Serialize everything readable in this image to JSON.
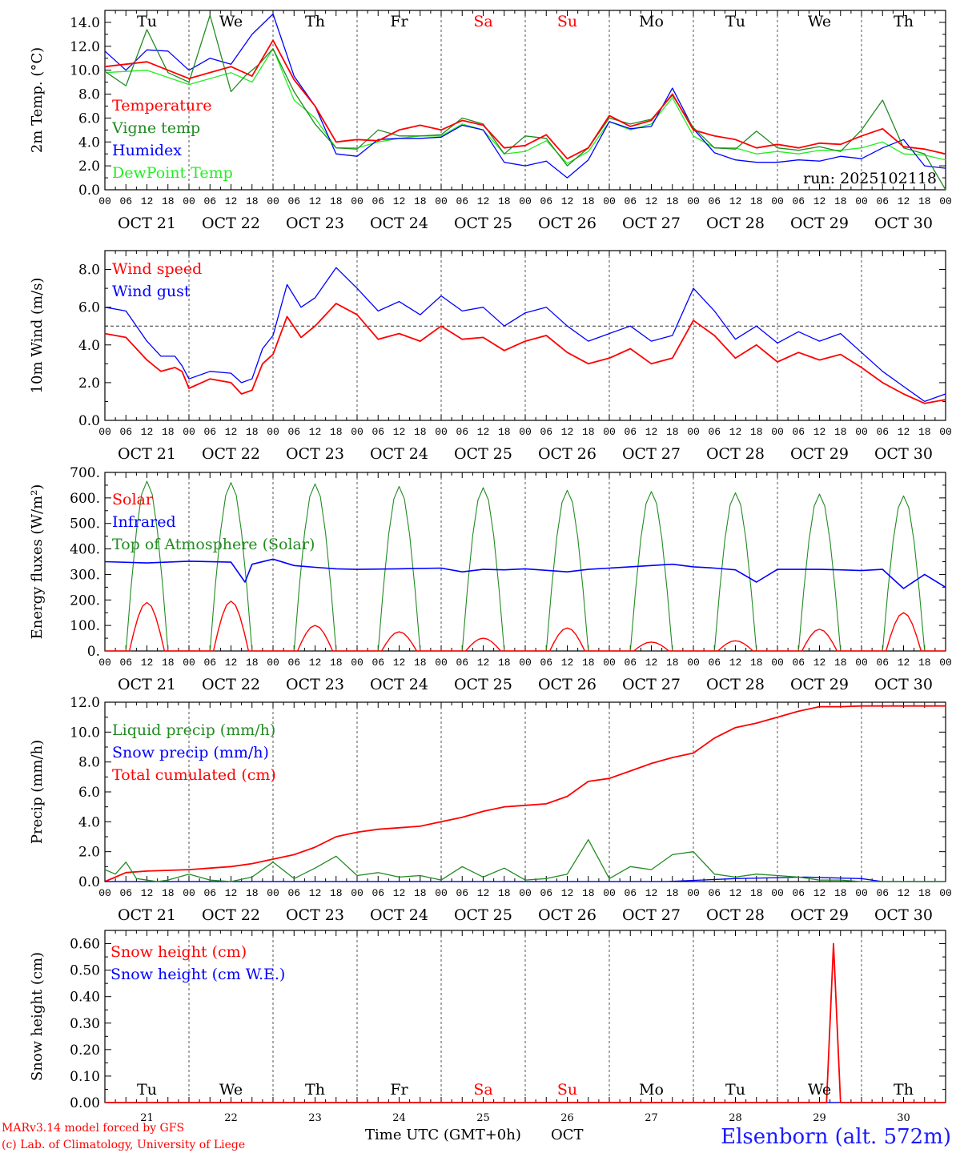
{
  "colors": {
    "red": "#ff0000",
    "green": "#228b22",
    "blue": "#0000ff",
    "lime": "#22ee22",
    "axis": "#000000"
  },
  "x_axis": {
    "hour_ticks": [
      "00",
      "06",
      "12",
      "18"
    ],
    "final_tick": "00",
    "date_labels": [
      "OCT 21",
      "OCT 22",
      "OCT 23",
      "OCT 24",
      "OCT 25",
      "OCT 26",
      "OCT 27",
      "OCT 28",
      "OCT 29",
      "OCT 30"
    ],
    "days": [
      {
        "abbr": "Tu",
        "weekend": false
      },
      {
        "abbr": "We",
        "weekend": false
      },
      {
        "abbr": "Th",
        "weekend": false
      },
      {
        "abbr": "Fr",
        "weekend": false
      },
      {
        "abbr": "Sa",
        "weekend": true
      },
      {
        "abbr": "Su",
        "weekend": true
      },
      {
        "abbr": "Mo",
        "weekend": false
      },
      {
        "abbr": "Tu",
        "weekend": false
      },
      {
        "abbr": "We",
        "weekend": false
      },
      {
        "abbr": "Th",
        "weekend": false
      }
    ],
    "day_numbers": [
      "21",
      "22",
      "23",
      "24",
      "25",
      "26",
      "27",
      "28",
      "29",
      "30"
    ],
    "bottom_title": "Time UTC (GMT+0h)",
    "bottom_month": "OCT"
  },
  "footer": {
    "model_line": "MARv3.14 model forced by GFS",
    "credit_line": "(c) Lab. of Climatology, University of Liege",
    "station": "Elsenborn (alt. 572m)"
  },
  "chart_data": [
    {
      "type": "line",
      "id": "temperature",
      "ylabel": "2m Temp. (°C)",
      "ylim": [
        0,
        15
      ],
      "yticks": [
        "0.0",
        "2.0",
        "4.0",
        "6.0",
        "8.0",
        "10.0",
        "12.0",
        "14.0"
      ],
      "run_label": "run: 2025102118",
      "x_unit": "hours since Oct 21 00 UTC",
      "series": [
        {
          "name": "Temperature",
          "color": "red",
          "x": [
            0,
            12,
            24,
            36,
            42,
            48,
            54,
            60,
            66,
            72,
            78,
            84,
            90,
            96,
            102,
            108,
            114,
            120,
            126,
            132,
            138,
            144,
            150,
            156,
            162,
            168,
            174,
            180,
            186,
            192,
            198,
            204,
            210,
            216,
            222,
            228,
            234,
            240
          ],
          "values": [
            10.3,
            10.7,
            9.3,
            10.3,
            9.5,
            12.5,
            9.2,
            7.0,
            4.0,
            4.2,
            4.1,
            5.0,
            5.4,
            5.0,
            5.8,
            5.4,
            3.5,
            3.7,
            4.6,
            2.6,
            3.5,
            6.2,
            5.3,
            5.8,
            8.0,
            5.0,
            4.5,
            4.2,
            3.5,
            3.8,
            3.5,
            3.9,
            3.8,
            4.5,
            5.1,
            3.6,
            3.4,
            3.0
          ]
        },
        {
          "name": "Vigne temp",
          "color": "green",
          "x": [
            0,
            6,
            12,
            18,
            24,
            30,
            36,
            40,
            44,
            48,
            54,
            60,
            66,
            72,
            78,
            84,
            90,
            96,
            102,
            108,
            114,
            120,
            126,
            132,
            138,
            144,
            150,
            156,
            162,
            168,
            174,
            180,
            186,
            192,
            198,
            204,
            210,
            216,
            222,
            228,
            234,
            240
          ],
          "values": [
            9.9,
            8.7,
            13.4,
            9.8,
            9.0,
            14.6,
            8.2,
            9.5,
            10.5,
            11.8,
            8.2,
            5.5,
            3.5,
            3.4,
            5.0,
            4.5,
            4.5,
            4.6,
            6.0,
            5.5,
            3.0,
            4.5,
            4.3,
            2.0,
            3.5,
            6.0,
            5.5,
            5.9,
            7.9,
            5.2,
            3.5,
            3.4,
            4.9,
            3.5,
            3.3,
            3.6,
            3.2,
            5.0,
            7.5,
            3.5,
            3.0,
            0.0
          ]
        },
        {
          "name": "Humidex",
          "color": "blue",
          "x": [
            0,
            6,
            12,
            18,
            24,
            30,
            36,
            42,
            48,
            54,
            60,
            66,
            72,
            78,
            84,
            90,
            96,
            102,
            108,
            114,
            120,
            126,
            132,
            138,
            144,
            150,
            156,
            162,
            168,
            174,
            180,
            186,
            192,
            198,
            204,
            210,
            216,
            222,
            228,
            234,
            240
          ],
          "values": [
            11.6,
            10.0,
            11.7,
            11.6,
            10.0,
            11.0,
            10.5,
            13.0,
            14.7,
            9.5,
            7.0,
            3.0,
            2.8,
            4.2,
            4.3,
            4.3,
            4.4,
            5.4,
            5.0,
            2.3,
            2.0,
            2.4,
            1.0,
            2.5,
            5.7,
            5.1,
            5.3,
            8.5,
            5.1,
            3.1,
            2.5,
            2.3,
            2.3,
            2.5,
            2.4,
            2.8,
            2.6,
            3.5,
            4.2,
            2.0,
            1.8
          ]
        },
        {
          "name": "DewPoint Temp",
          "color": "lime",
          "x": [
            0,
            12,
            24,
            36,
            42,
            48,
            54,
            60,
            66,
            72,
            78,
            84,
            90,
            96,
            102,
            108,
            114,
            120,
            126,
            132,
            138,
            144,
            150,
            156,
            162,
            168,
            174,
            180,
            186,
            192,
            198,
            204,
            210,
            216,
            222,
            228,
            234,
            240
          ],
          "values": [
            9.8,
            10.0,
            8.8,
            9.8,
            9.0,
            11.8,
            7.5,
            6.0,
            3.5,
            3.5,
            4.0,
            4.3,
            4.5,
            4.5,
            5.5,
            5.0,
            3.0,
            3.2,
            4.1,
            2.2,
            3.2,
            5.7,
            5.0,
            5.5,
            7.7,
            4.5,
            3.5,
            3.5,
            3.0,
            3.2,
            3.0,
            3.3,
            3.3,
            3.5,
            4.0,
            3.0,
            2.9,
            2.5
          ]
        }
      ]
    },
    {
      "type": "line",
      "id": "wind",
      "ylabel": "10m Wind (m/s)",
      "ylim": [
        0,
        9
      ],
      "yticks": [
        "0.0",
        "2.0",
        "4.0",
        "6.0",
        "8.0"
      ],
      "reference_line": 5.0,
      "series": [
        {
          "name": "Wind speed",
          "color": "red",
          "x": [
            0,
            6,
            12,
            16,
            20,
            22,
            24,
            30,
            36,
            39,
            42,
            45,
            48,
            52,
            56,
            60,
            66,
            72,
            78,
            84,
            90,
            96,
            102,
            108,
            114,
            120,
            126,
            132,
            138,
            144,
            150,
            156,
            162,
            168,
            174,
            180,
            186,
            192,
            198,
            204,
            210,
            216,
            222,
            228,
            234,
            240
          ],
          "values": [
            4.6,
            4.4,
            3.2,
            2.6,
            2.8,
            2.6,
            1.7,
            2.2,
            2.0,
            1.4,
            1.6,
            3.0,
            3.5,
            5.5,
            4.4,
            5.0,
            6.2,
            5.6,
            4.3,
            4.6,
            4.2,
            5.0,
            4.3,
            4.4,
            3.7,
            4.2,
            4.5,
            3.6,
            3.0,
            3.3,
            3.8,
            3.0,
            3.3,
            5.3,
            4.5,
            3.3,
            4.0,
            3.1,
            3.6,
            3.2,
            3.5,
            2.8,
            2.0,
            1.4,
            0.9,
            1.1
          ]
        },
        {
          "name": "Wind gust",
          "color": "blue",
          "x": [
            0,
            6,
            12,
            16,
            20,
            22,
            24,
            30,
            36,
            39,
            42,
            45,
            48,
            52,
            56,
            60,
            66,
            72,
            78,
            84,
            90,
            96,
            102,
            108,
            114,
            120,
            126,
            132,
            138,
            144,
            150,
            156,
            162,
            168,
            174,
            180,
            186,
            192,
            198,
            204,
            210,
            216,
            222,
            228,
            234,
            240
          ],
          "values": [
            6.0,
            5.8,
            4.2,
            3.4,
            3.4,
            2.9,
            2.2,
            2.6,
            2.5,
            2.0,
            2.2,
            3.8,
            4.5,
            7.2,
            6.0,
            6.5,
            8.1,
            7.0,
            5.8,
            6.3,
            5.6,
            6.6,
            5.8,
            6.0,
            5.0,
            5.7,
            6.0,
            5.0,
            4.2,
            4.6,
            5.0,
            4.2,
            4.5,
            7.0,
            5.8,
            4.3,
            5.0,
            4.1,
            4.7,
            4.2,
            4.6,
            3.6,
            2.6,
            1.8,
            1.0,
            1.4
          ]
        }
      ]
    },
    {
      "type": "line",
      "id": "fluxes",
      "ylabel": "Energy fluxes (W/m²)",
      "ylim": [
        0,
        700
      ],
      "yticks": [
        "0.",
        "100.",
        "200.",
        "300.",
        "400.",
        "500.",
        "600.",
        "700."
      ],
      "toa_peaks": [
        665,
        660,
        655,
        645,
        640,
        630,
        625,
        620,
        615,
        608
      ],
      "solar_peaks": [
        190,
        195,
        100,
        75,
        50,
        90,
        35,
        40,
        85,
        150
      ],
      "series": [
        {
          "name": "Solar",
          "color": "red",
          "note": "daytime pulse 07-17 UTC, peaks in solar_peaks"
        },
        {
          "name": "Infrared",
          "color": "blue",
          "x": [
            0,
            12,
            24,
            36,
            40,
            42,
            48,
            54,
            60,
            66,
            72,
            84,
            96,
            102,
            108,
            114,
            120,
            132,
            138,
            144,
            156,
            162,
            168,
            174,
            180,
            186,
            192,
            204,
            210,
            216,
            222,
            228,
            234,
            240
          ],
          "values": [
            350,
            345,
            352,
            348,
            270,
            340,
            360,
            335,
            328,
            322,
            320,
            322,
            325,
            310,
            320,
            318,
            322,
            310,
            320,
            325,
            335,
            340,
            330,
            325,
            318,
            270,
            320,
            320,
            318,
            315,
            320,
            245,
            300,
            250
          ]
        },
        {
          "name": "Top of Atmosphere (Solar)",
          "color": "green",
          "note": "daytime pulse 06-18 UTC, peaks in toa_peaks"
        }
      ]
    },
    {
      "type": "line",
      "id": "precip",
      "ylabel": "Precip (mm/h)",
      "ylim": [
        0,
        12
      ],
      "yticks": [
        "0.0",
        "2.0",
        "4.0",
        "6.0",
        "8.0",
        "10.0",
        "12.0"
      ],
      "series": [
        {
          "name": "Liquid precip (mm/h)",
          "color": "green",
          "x": [
            0,
            3,
            6,
            9,
            12,
            15,
            18,
            24,
            30,
            36,
            42,
            48,
            54,
            60,
            66,
            72,
            78,
            84,
            90,
            96,
            102,
            108,
            114,
            120,
            126,
            132,
            138,
            144,
            150,
            156,
            162,
            168,
            174,
            180,
            186,
            192,
            198,
            204,
            210,
            216,
            222,
            228,
            234,
            240
          ],
          "values": [
            0.8,
            0.5,
            1.3,
            0.2,
            0.1,
            0.0,
            0.1,
            0.5,
            0.1,
            0.0,
            0.3,
            1.3,
            0.2,
            0.9,
            1.7,
            0.4,
            0.6,
            0.3,
            0.4,
            0.1,
            1.0,
            0.3,
            0.9,
            0.1,
            0.2,
            0.5,
            2.8,
            0.2,
            1.0,
            0.8,
            1.8,
            2.0,
            0.5,
            0.3,
            0.5,
            0.4,
            0.3,
            0.1,
            0.1,
            0.0,
            0.0,
            0.0,
            0.0,
            0.0
          ]
        },
        {
          "name": "Snow precip (mm/h)",
          "color": "blue",
          "x": [
            0,
            120,
            160,
            180,
            200,
            216,
            222,
            240
          ],
          "values": [
            0.0,
            0.0,
            0.0,
            0.2,
            0.3,
            0.2,
            0.0,
            0.0
          ]
        },
        {
          "name": "Total cumulated (cm)",
          "color": "red",
          "x": [
            0,
            6,
            12,
            24,
            36,
            42,
            48,
            54,
            60,
            66,
            72,
            78,
            84,
            90,
            96,
            102,
            108,
            114,
            120,
            126,
            132,
            138,
            144,
            150,
            156,
            162,
            168,
            174,
            180,
            186,
            192,
            198,
            204,
            210,
            216,
            222,
            228,
            234,
            240
          ],
          "values": [
            0.0,
            0.6,
            0.7,
            0.8,
            1.0,
            1.2,
            1.5,
            1.8,
            2.3,
            3.0,
            3.3,
            3.5,
            3.6,
            3.7,
            4.0,
            4.3,
            4.7,
            5.0,
            5.1,
            5.2,
            5.7,
            6.7,
            6.9,
            7.4,
            7.9,
            8.3,
            8.6,
            9.6,
            10.3,
            10.6,
            11.0,
            11.4,
            11.7,
            11.7,
            11.75,
            11.75,
            11.75,
            11.75,
            11.75
          ]
        }
      ]
    },
    {
      "type": "line",
      "id": "snow",
      "ylabel": "Snow height (cm)",
      "ylim": [
        0,
        0.65
      ],
      "yticks": [
        "0.00",
        "0.10",
        "0.20",
        "0.30",
        "0.40",
        "0.50",
        "0.60"
      ],
      "series": [
        {
          "name": "Snow height (cm)",
          "color": "red",
          "x": [
            0,
            206,
            208,
            210,
            240
          ],
          "values": [
            0,
            0,
            0.6,
            0,
            0
          ]
        },
        {
          "name": "Snow height (cm W.E.)",
          "color": "blue",
          "x": [
            0,
            240
          ],
          "values": [
            0,
            0
          ]
        }
      ]
    }
  ]
}
